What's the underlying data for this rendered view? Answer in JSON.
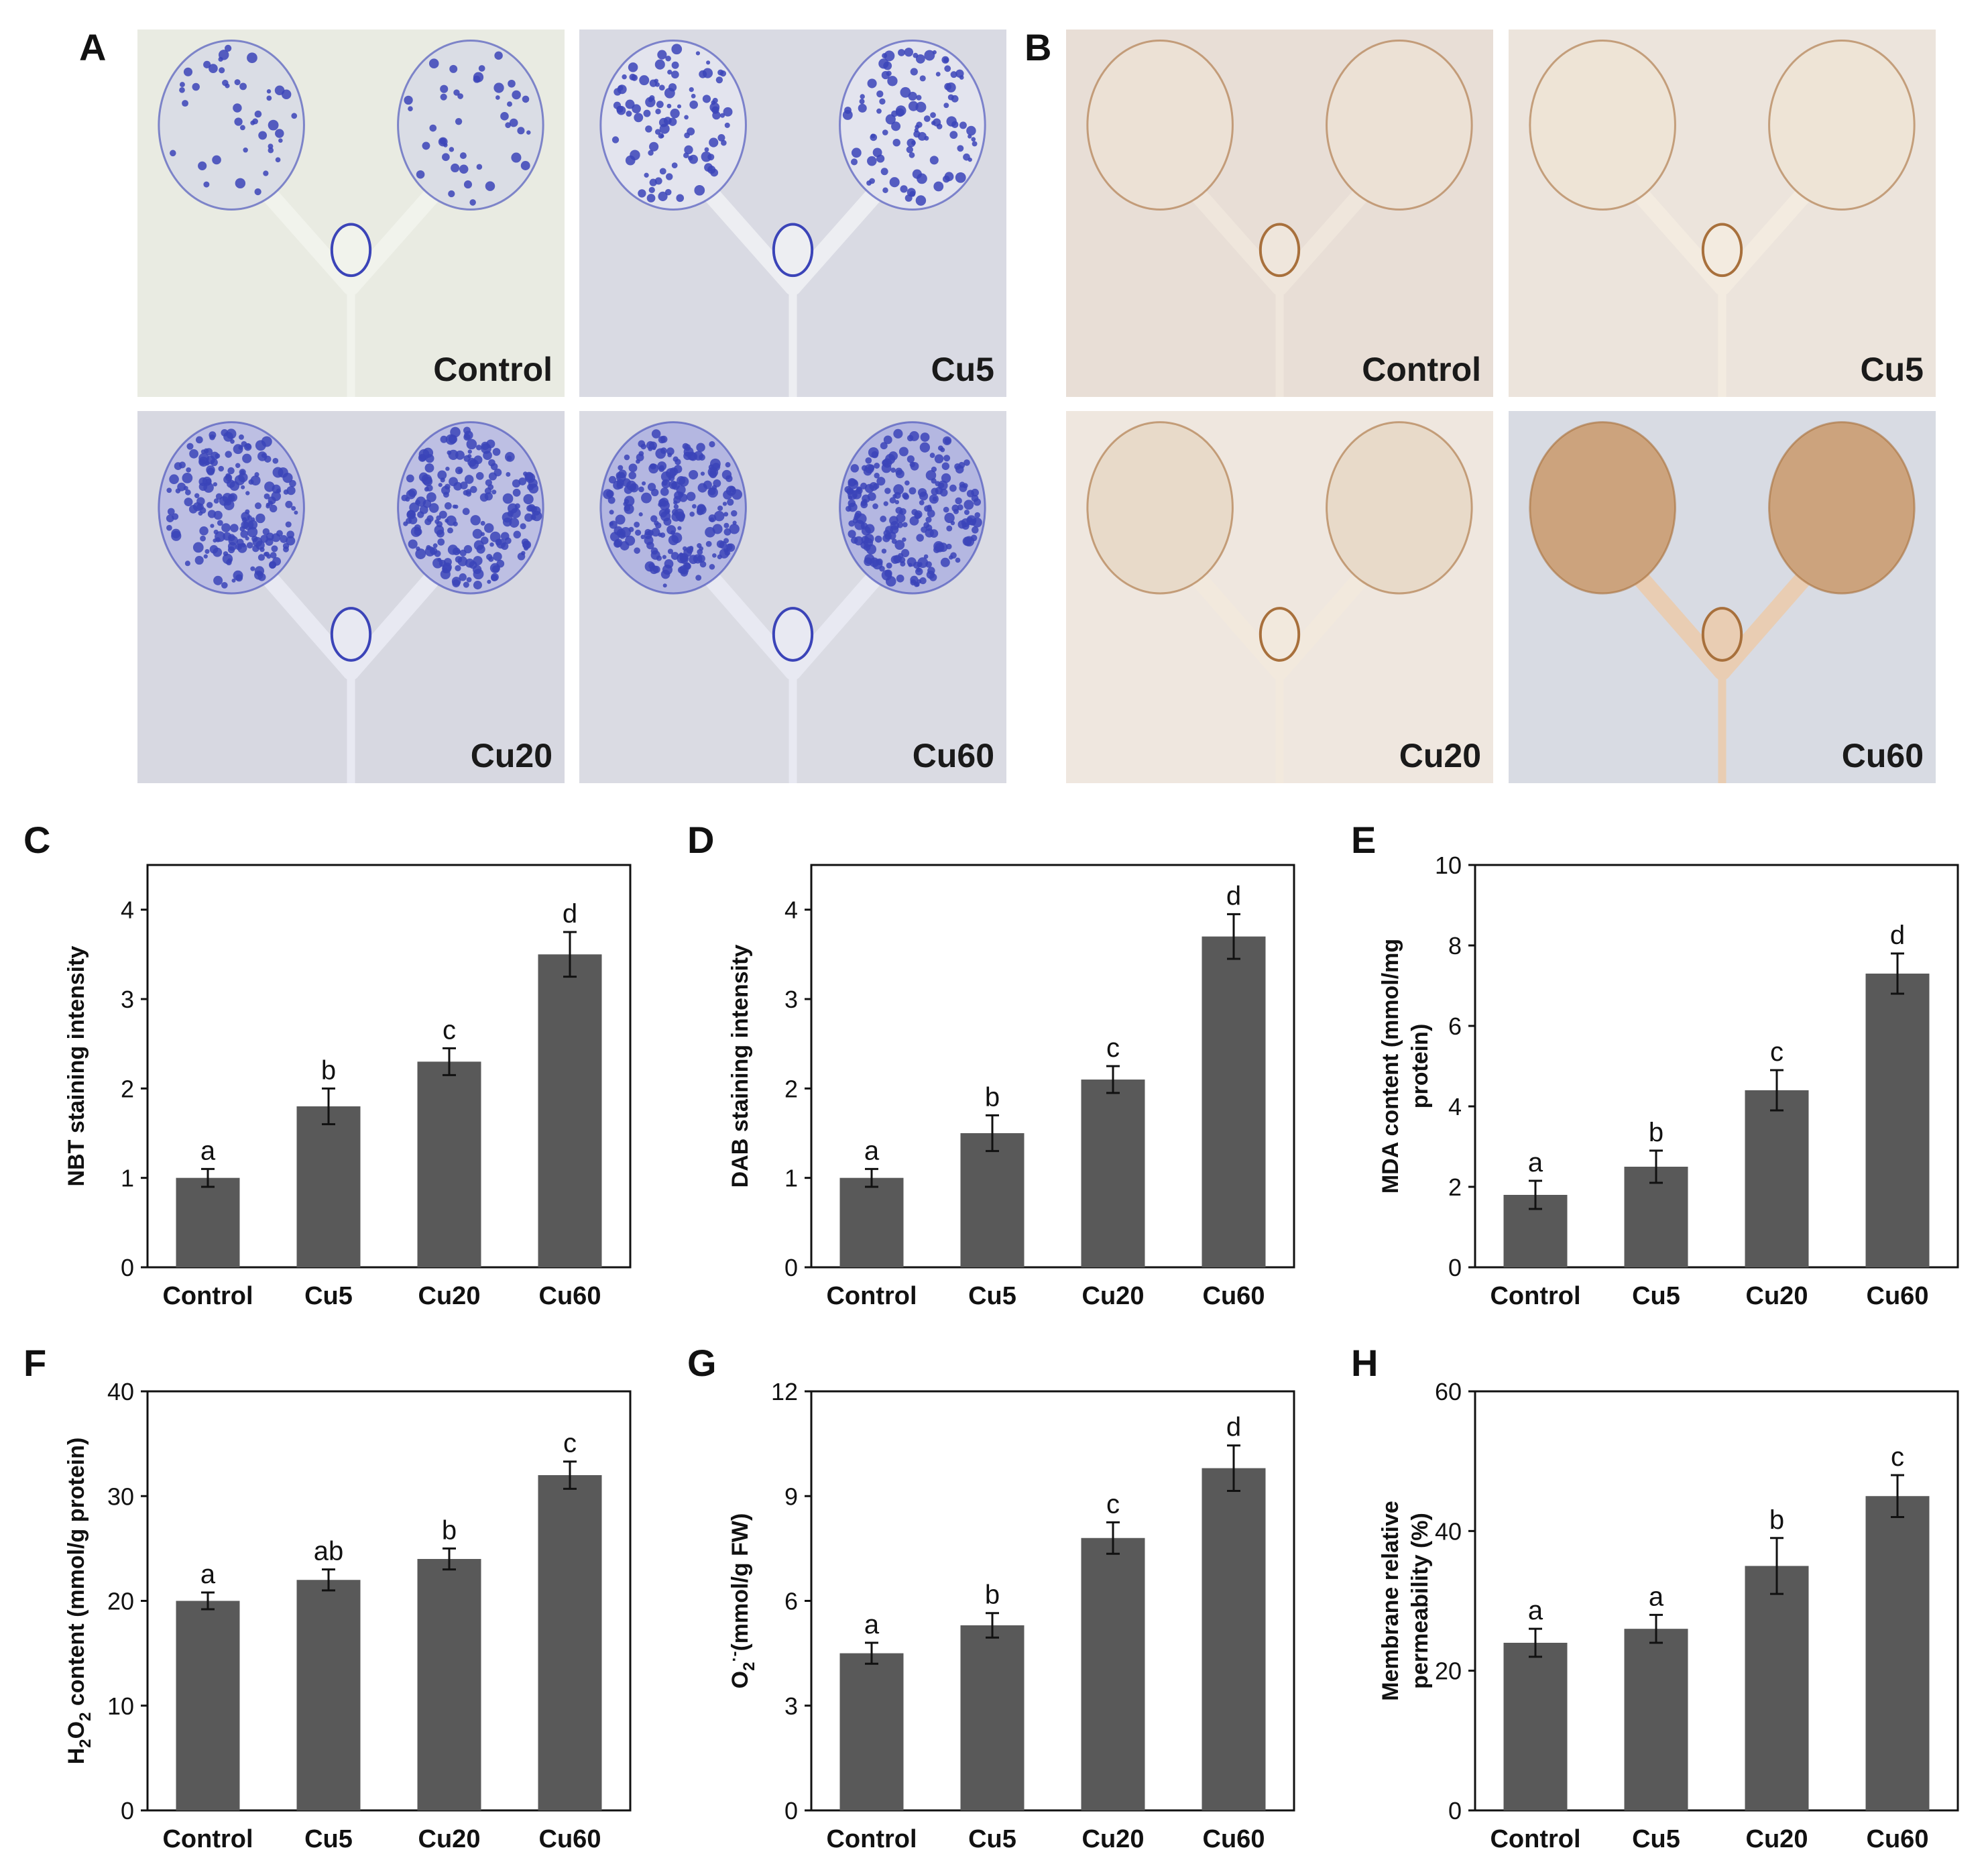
{
  "panels": {
    "A": {
      "letter": "A",
      "stain_color": "#3b44b8",
      "labels": [
        "Control",
        "Cu5",
        "Cu20",
        "Cu60"
      ]
    },
    "B": {
      "letter": "B",
      "stain_color": "#a8703c",
      "labels": [
        "Control",
        "Cu5",
        "Cu20",
        "Cu60"
      ]
    }
  },
  "bar_color": "#595959",
  "chart_data": [
    {
      "id": "C",
      "letter": "C",
      "type": "bar",
      "categories": [
        "Control",
        "Cu5",
        "Cu20",
        "Cu60"
      ],
      "values": [
        1.0,
        1.8,
        2.3,
        3.5
      ],
      "errors": [
        0.1,
        0.2,
        0.15,
        0.25
      ],
      "significance": [
        "a",
        "b",
        "c",
        "d"
      ],
      "ylabel": "NBT staining intensity",
      "ylim": [
        0,
        4.5
      ],
      "yticks": [
        0,
        1,
        2,
        3,
        4
      ],
      "grid": false
    },
    {
      "id": "D",
      "letter": "D",
      "type": "bar",
      "categories": [
        "Control",
        "Cu5",
        "Cu20",
        "Cu60"
      ],
      "values": [
        1.0,
        1.5,
        2.1,
        3.7
      ],
      "errors": [
        0.1,
        0.2,
        0.15,
        0.25
      ],
      "significance": [
        "a",
        "b",
        "c",
        "d"
      ],
      "ylabel": "DAB staining intensity",
      "ylim": [
        0,
        4.5
      ],
      "yticks": [
        0,
        1,
        2,
        3,
        4
      ],
      "grid": false
    },
    {
      "id": "E",
      "letter": "E",
      "type": "bar",
      "categories": [
        "Control",
        "Cu5",
        "Cu20",
        "Cu60"
      ],
      "values": [
        1.8,
        2.5,
        4.4,
        7.3
      ],
      "errors": [
        0.35,
        0.4,
        0.5,
        0.5
      ],
      "significance": [
        "a",
        "b",
        "c",
        "d"
      ],
      "ylabel": [
        "MDA content  (mmol/mg",
        "protein)"
      ],
      "ylim": [
        0,
        10
      ],
      "yticks": [
        0,
        2,
        4,
        6,
        8,
        10
      ],
      "grid": false
    },
    {
      "id": "F",
      "letter": "F",
      "type": "bar",
      "categories": [
        "Control",
        "Cu5",
        "Cu20",
        "Cu60"
      ],
      "values": [
        20,
        22,
        24,
        32
      ],
      "errors": [
        0.8,
        1.0,
        1.0,
        1.3
      ],
      "significance": [
        "a",
        "ab",
        "b",
        "c"
      ],
      "ylabel": "H2O2 content  (mmol/g protein)",
      "ylim": [
        0,
        40
      ],
      "yticks": [
        0,
        10,
        20,
        30,
        40
      ],
      "grid": false
    },
    {
      "id": "G",
      "letter": "G",
      "type": "bar",
      "categories": [
        "Control",
        "Cu5",
        "Cu20",
        "Cu60"
      ],
      "values": [
        4.5,
        5.3,
        7.8,
        9.8
      ],
      "errors": [
        0.3,
        0.35,
        0.45,
        0.65
      ],
      "significance": [
        "a",
        "b",
        "c",
        "d"
      ],
      "ylabel": "O2·- (mmol/g FW)",
      "ylim": [
        0,
        12
      ],
      "yticks": [
        0,
        3,
        6,
        9,
        12
      ],
      "grid": false
    },
    {
      "id": "H",
      "letter": "H",
      "type": "bar",
      "categories": [
        "Control",
        "Cu5",
        "Cu20",
        "Cu60"
      ],
      "values": [
        24,
        26,
        35,
        45
      ],
      "errors": [
        2,
        2,
        4,
        3
      ],
      "significance": [
        "a",
        "a",
        "b",
        "c"
      ],
      "ylabel": [
        "Membrane relative",
        "permeability  (%)"
      ],
      "ylim": [
        0,
        60
      ],
      "yticks": [
        0,
        20,
        40,
        60
      ],
      "grid": false
    }
  ]
}
